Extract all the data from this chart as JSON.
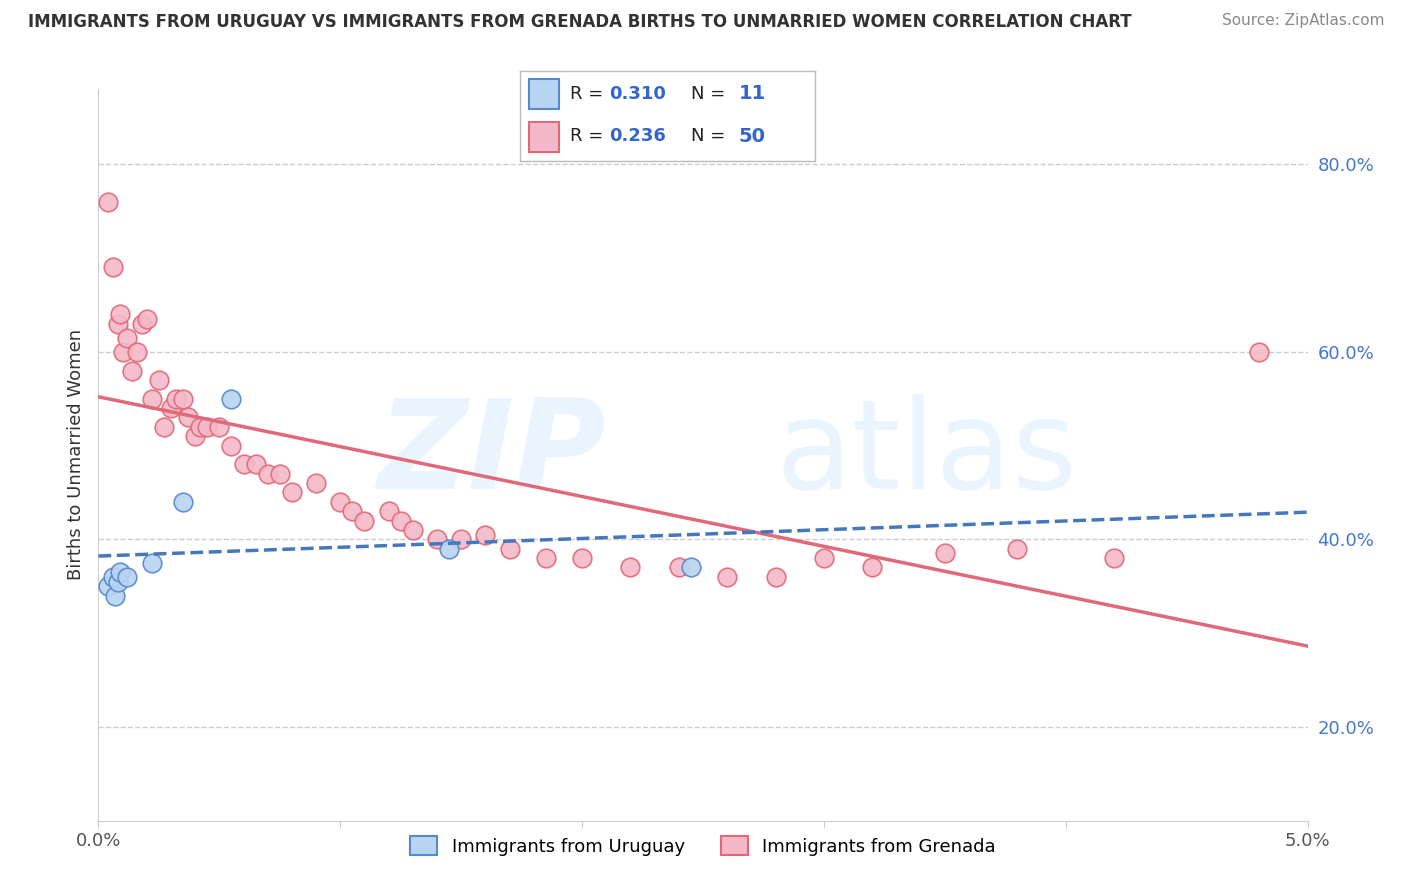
{
  "title": "IMMIGRANTS FROM URUGUAY VS IMMIGRANTS FROM GRENADA BIRTHS TO UNMARRIED WOMEN CORRELATION CHART",
  "source": "Source: ZipAtlas.com",
  "ylabel": "Births to Unmarried Women",
  "xlim": [
    0.0,
    5.0
  ],
  "ylim": [
    10.0,
    88.0
  ],
  "xticks": [
    0.0,
    1.0,
    2.0,
    3.0,
    4.0,
    5.0
  ],
  "xticklabels": [
    "0.0%",
    "",
    "",
    "",
    "",
    "5.0%"
  ],
  "yticks": [
    20.0,
    40.0,
    60.0,
    80.0
  ],
  "yticklabels": [
    "20.0%",
    "40.0%",
    "60.0%",
    "80.0%"
  ],
  "legend_r_uruguay": "0.310",
  "legend_n_uruguay": "11",
  "legend_r_grenada": "0.236",
  "legend_n_grenada": "50",
  "uruguay_face_color": "#b8d4f0",
  "uruguay_edge_color": "#5588cc",
  "grenada_face_color": "#f5b8c8",
  "grenada_edge_color": "#e06878",
  "uruguay_line_color": "#4477bb",
  "grenada_line_color": "#e06878",
  "background_color": "#ffffff",
  "grid_color": "#cccccc",
  "uruguay_scatter": [
    [
      0.04,
      35.0
    ],
    [
      0.06,
      36.0
    ],
    [
      0.07,
      34.0
    ],
    [
      0.08,
      35.5
    ],
    [
      0.09,
      36.5
    ],
    [
      0.12,
      36.0
    ],
    [
      0.22,
      37.5
    ],
    [
      0.35,
      44.0
    ],
    [
      0.55,
      55.0
    ],
    [
      1.45,
      39.0
    ],
    [
      2.45,
      37.0
    ]
  ],
  "grenada_scatter": [
    [
      0.04,
      76.0
    ],
    [
      0.06,
      69.0
    ],
    [
      0.08,
      63.0
    ],
    [
      0.09,
      64.0
    ],
    [
      0.1,
      60.0
    ],
    [
      0.12,
      61.5
    ],
    [
      0.14,
      58.0
    ],
    [
      0.16,
      60.0
    ],
    [
      0.18,
      63.0
    ],
    [
      0.2,
      63.5
    ],
    [
      0.22,
      55.0
    ],
    [
      0.25,
      57.0
    ],
    [
      0.27,
      52.0
    ],
    [
      0.3,
      54.0
    ],
    [
      0.32,
      55.0
    ],
    [
      0.35,
      55.0
    ],
    [
      0.37,
      53.0
    ],
    [
      0.4,
      51.0
    ],
    [
      0.42,
      52.0
    ],
    [
      0.45,
      52.0
    ],
    [
      0.5,
      52.0
    ],
    [
      0.55,
      50.0
    ],
    [
      0.6,
      48.0
    ],
    [
      0.65,
      48.0
    ],
    [
      0.7,
      47.0
    ],
    [
      0.75,
      47.0
    ],
    [
      0.8,
      45.0
    ],
    [
      0.9,
      46.0
    ],
    [
      1.0,
      44.0
    ],
    [
      1.05,
      43.0
    ],
    [
      1.1,
      42.0
    ],
    [
      1.2,
      43.0
    ],
    [
      1.25,
      42.0
    ],
    [
      1.3,
      41.0
    ],
    [
      1.4,
      40.0
    ],
    [
      1.5,
      40.0
    ],
    [
      1.6,
      40.5
    ],
    [
      1.7,
      39.0
    ],
    [
      1.85,
      38.0
    ],
    [
      2.0,
      38.0
    ],
    [
      2.2,
      37.0
    ],
    [
      2.4,
      37.0
    ],
    [
      2.6,
      36.0
    ],
    [
      2.8,
      36.0
    ],
    [
      3.0,
      38.0
    ],
    [
      3.2,
      37.0
    ],
    [
      3.5,
      38.5
    ],
    [
      3.8,
      39.0
    ],
    [
      4.2,
      38.0
    ],
    [
      4.8,
      60.0
    ]
  ],
  "watermark_zip_color": "#d8e8f8",
  "watermark_atlas_color": "#d8e8f8"
}
